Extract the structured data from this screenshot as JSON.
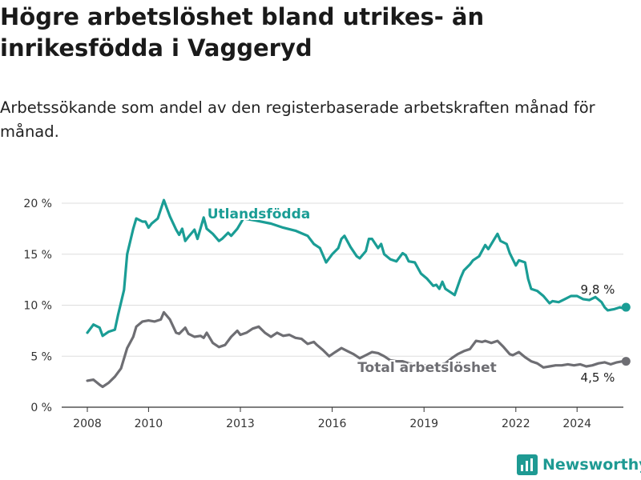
{
  "title": "Högre arbetslöshet bland utrikes- än inrikesfödda i Vaggeryd",
  "subtitle": "Arbetssökande som andel av den registerbaserade arbetskraften månad för månad.",
  "logo_text": "Newsworthy",
  "colors": {
    "foreign": "#1a9d95",
    "total": "#6e6e73",
    "grid": "#dddddd",
    "axis": "#333333"
  },
  "chart_data": {
    "type": "line",
    "title": "Högre arbetslöshet bland utrikes- än inrikesfödda i Vaggeryd",
    "subtitle": "Arbetssökande som andel av den registerbaserade arbetskraften månad för månad.",
    "x_ticks": [
      "2008",
      "2010",
      "2013",
      "2016",
      "2019",
      "2022",
      "2024"
    ],
    "x_tick_values": [
      2008,
      2010,
      2013,
      2016,
      2019,
      2022,
      2024
    ],
    "y_ticks": [
      "0 %",
      "5 %",
      "10 %",
      "15 %",
      "20 %"
    ],
    "y_tick_values": [
      0,
      5,
      10,
      15,
      20
    ],
    "xlim": [
      2007.5,
      2026.2
    ],
    "ylim": [
      0,
      20
    ],
    "grid": true,
    "series": [
      {
        "name": "Utlandsfödda",
        "end_label": "9,8 %",
        "points": [
          [
            2008.0,
            7.3
          ],
          [
            2008.2,
            8.1
          ],
          [
            2008.4,
            7.8
          ],
          [
            2008.5,
            7.0
          ],
          [
            2008.7,
            7.4
          ],
          [
            2008.9,
            7.6
          ],
          [
            2009.0,
            9.0
          ],
          [
            2009.2,
            11.5
          ],
          [
            2009.3,
            15.0
          ],
          [
            2009.5,
            17.5
          ],
          [
            2009.6,
            18.5
          ],
          [
            2009.8,
            18.2
          ],
          [
            2009.9,
            18.2
          ],
          [
            2010.0,
            17.6
          ],
          [
            2010.1,
            18.0
          ],
          [
            2010.3,
            18.5
          ],
          [
            2010.5,
            20.3
          ],
          [
            2010.6,
            19.5
          ],
          [
            2010.7,
            18.7
          ],
          [
            2010.9,
            17.4
          ],
          [
            2011.0,
            16.9
          ],
          [
            2011.1,
            17.5
          ],
          [
            2011.2,
            16.3
          ],
          [
            2011.3,
            16.7
          ],
          [
            2011.5,
            17.4
          ],
          [
            2011.6,
            16.5
          ],
          [
            2011.8,
            18.6
          ],
          [
            2011.9,
            17.5
          ],
          [
            2012.1,
            17.0
          ],
          [
            2012.3,
            16.3
          ],
          [
            2012.4,
            16.5
          ],
          [
            2012.6,
            17.1
          ],
          [
            2012.7,
            16.8
          ],
          [
            2012.9,
            17.5
          ],
          [
            2013.1,
            18.5
          ],
          [
            2013.5,
            18.3
          ],
          [
            2014.0,
            18.0
          ],
          [
            2014.4,
            17.6
          ],
          [
            2014.8,
            17.3
          ],
          [
            2015.2,
            16.8
          ],
          [
            2015.4,
            16.0
          ],
          [
            2015.6,
            15.6
          ],
          [
            2015.8,
            14.2
          ],
          [
            2016.0,
            15.0
          ],
          [
            2016.2,
            15.6
          ],
          [
            2016.3,
            16.5
          ],
          [
            2016.4,
            16.8
          ],
          [
            2016.6,
            15.7
          ],
          [
            2016.8,
            14.8
          ],
          [
            2016.9,
            14.6
          ],
          [
            2017.1,
            15.3
          ],
          [
            2017.2,
            16.5
          ],
          [
            2017.3,
            16.5
          ],
          [
            2017.5,
            15.6
          ],
          [
            2017.6,
            16.0
          ],
          [
            2017.7,
            15.0
          ],
          [
            2017.9,
            14.5
          ],
          [
            2018.1,
            14.3
          ],
          [
            2018.3,
            15.1
          ],
          [
            2018.4,
            14.9
          ],
          [
            2018.5,
            14.3
          ],
          [
            2018.7,
            14.2
          ],
          [
            2018.9,
            13.1
          ],
          [
            2019.1,
            12.6
          ],
          [
            2019.3,
            11.9
          ],
          [
            2019.4,
            12.0
          ],
          [
            2019.5,
            11.6
          ],
          [
            2019.6,
            12.3
          ],
          [
            2019.7,
            11.6
          ],
          [
            2019.9,
            11.2
          ],
          [
            2020.0,
            11.0
          ],
          [
            2020.2,
            12.7
          ],
          [
            2020.3,
            13.4
          ],
          [
            2020.5,
            14.0
          ],
          [
            2020.6,
            14.4
          ],
          [
            2020.8,
            14.8
          ],
          [
            2021.0,
            15.9
          ],
          [
            2021.1,
            15.5
          ],
          [
            2021.3,
            16.5
          ],
          [
            2021.4,
            17.0
          ],
          [
            2021.5,
            16.3
          ],
          [
            2021.7,
            16.0
          ],
          [
            2021.8,
            15.1
          ],
          [
            2022.0,
            13.9
          ],
          [
            2022.1,
            14.4
          ],
          [
            2022.3,
            14.2
          ],
          [
            2022.4,
            12.6
          ],
          [
            2022.5,
            11.6
          ],
          [
            2022.7,
            11.4
          ],
          [
            2022.9,
            10.9
          ],
          [
            2023.1,
            10.2
          ],
          [
            2023.2,
            10.4
          ],
          [
            2023.4,
            10.3
          ],
          [
            2023.6,
            10.6
          ],
          [
            2023.8,
            10.9
          ],
          [
            2024.0,
            10.9
          ],
          [
            2024.2,
            10.6
          ],
          [
            2024.4,
            10.5
          ],
          [
            2024.6,
            10.8
          ],
          [
            2024.8,
            10.3
          ],
          [
            2024.9,
            9.8
          ],
          [
            2025.0,
            9.5
          ],
          [
            2025.2,
            9.6
          ],
          [
            2025.4,
            9.8
          ],
          [
            2025.5,
            9.7
          ],
          [
            2025.6,
            9.8
          ]
        ]
      },
      {
        "name": "Total arbetslöshet",
        "end_label": "4,5 %",
        "points": [
          [
            2008.0,
            2.6
          ],
          [
            2008.2,
            2.7
          ],
          [
            2008.4,
            2.2
          ],
          [
            2008.5,
            2.0
          ],
          [
            2008.7,
            2.4
          ],
          [
            2008.9,
            3.0
          ],
          [
            2009.1,
            3.8
          ],
          [
            2009.3,
            5.8
          ],
          [
            2009.5,
            6.9
          ],
          [
            2009.6,
            7.9
          ],
          [
            2009.8,
            8.4
          ],
          [
            2010.0,
            8.5
          ],
          [
            2010.2,
            8.4
          ],
          [
            2010.4,
            8.6
          ],
          [
            2010.5,
            9.3
          ],
          [
            2010.7,
            8.6
          ],
          [
            2010.9,
            7.3
          ],
          [
            2011.0,
            7.2
          ],
          [
            2011.2,
            7.8
          ],
          [
            2011.3,
            7.2
          ],
          [
            2011.5,
            6.9
          ],
          [
            2011.7,
            7.0
          ],
          [
            2011.8,
            6.8
          ],
          [
            2011.9,
            7.3
          ],
          [
            2012.1,
            6.3
          ],
          [
            2012.3,
            5.9
          ],
          [
            2012.5,
            6.1
          ],
          [
            2012.7,
            6.9
          ],
          [
            2012.9,
            7.5
          ],
          [
            2013.0,
            7.1
          ],
          [
            2013.2,
            7.3
          ],
          [
            2013.4,
            7.7
          ],
          [
            2013.6,
            7.9
          ],
          [
            2013.8,
            7.3
          ],
          [
            2014.0,
            6.9
          ],
          [
            2014.2,
            7.3
          ],
          [
            2014.4,
            7.0
          ],
          [
            2014.6,
            7.1
          ],
          [
            2014.8,
            6.8
          ],
          [
            2015.0,
            6.7
          ],
          [
            2015.2,
            6.2
          ],
          [
            2015.4,
            6.4
          ],
          [
            2015.5,
            6.1
          ],
          [
            2015.7,
            5.6
          ],
          [
            2015.9,
            5.0
          ],
          [
            2016.1,
            5.4
          ],
          [
            2016.3,
            5.8
          ],
          [
            2016.5,
            5.5
          ],
          [
            2016.7,
            5.2
          ],
          [
            2016.9,
            4.8
          ],
          [
            2017.1,
            5.1
          ],
          [
            2017.3,
            5.4
          ],
          [
            2017.5,
            5.3
          ],
          [
            2017.7,
            5.0
          ],
          [
            2017.9,
            4.6
          ],
          [
            2018.1,
            4.5
          ],
          [
            2018.3,
            4.5
          ],
          [
            2018.5,
            4.3
          ],
          [
            2018.7,
            4.2
          ],
          [
            2018.9,
            4.1
          ],
          [
            2019.1,
            4.1
          ],
          [
            2019.3,
            4.0
          ],
          [
            2019.5,
            4.1
          ],
          [
            2019.7,
            4.3
          ],
          [
            2019.9,
            4.8
          ],
          [
            2020.1,
            5.2
          ],
          [
            2020.3,
            5.5
          ],
          [
            2020.5,
            5.7
          ],
          [
            2020.7,
            6.5
          ],
          [
            2020.9,
            6.4
          ],
          [
            2021.0,
            6.5
          ],
          [
            2021.2,
            6.3
          ],
          [
            2021.4,
            6.5
          ],
          [
            2021.6,
            5.9
          ],
          [
            2021.8,
            5.2
          ],
          [
            2021.9,
            5.1
          ],
          [
            2022.1,
            5.4
          ],
          [
            2022.3,
            4.9
          ],
          [
            2022.5,
            4.5
          ],
          [
            2022.7,
            4.3
          ],
          [
            2022.9,
            3.9
          ],
          [
            2023.1,
            4.0
          ],
          [
            2023.3,
            4.1
          ],
          [
            2023.5,
            4.1
          ],
          [
            2023.7,
            4.2
          ],
          [
            2023.9,
            4.1
          ],
          [
            2024.1,
            4.2
          ],
          [
            2024.3,
            4.0
          ],
          [
            2024.5,
            4.1
          ],
          [
            2024.7,
            4.3
          ],
          [
            2024.9,
            4.4
          ],
          [
            2025.1,
            4.2
          ],
          [
            2025.3,
            4.4
          ],
          [
            2025.5,
            4.5
          ],
          [
            2025.6,
            4.5
          ]
        ]
      }
    ]
  }
}
